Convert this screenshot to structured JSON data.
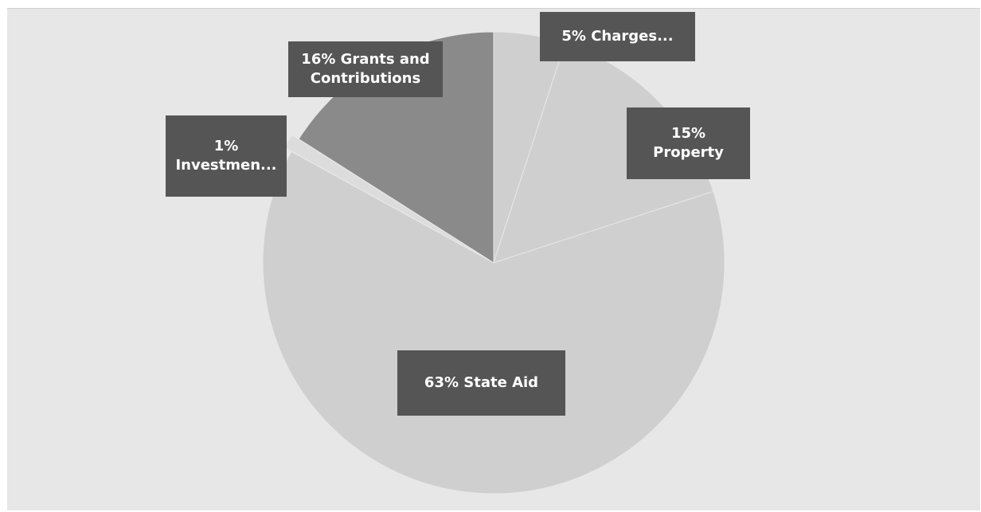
{
  "chart_data": {
    "type": "pie",
    "title": "",
    "slices": [
      {
        "label": "Charges...",
        "value": 5,
        "data_label": "5% Charges...",
        "color": "#cfcfcf"
      },
      {
        "label": "Property",
        "value": 15,
        "data_label": "15%\nProperty",
        "color": "#cfcfcf"
      },
      {
        "label": "State Aid",
        "value": 63,
        "data_label": "63% State Aid",
        "color": "#cfcfcf"
      },
      {
        "label": "Investmen...",
        "value": 1,
        "data_label": "1%\nInvestmen...",
        "color": "#dcdcdc"
      },
      {
        "label": "Grants and Contributions",
        "value": 16,
        "data_label": "16% Grants and\nContributions",
        "color": "#8a8a8a"
      }
    ],
    "start_angle_deg": 0,
    "direction": "clockwise",
    "legend": "none",
    "label_box_color": "#555555",
    "label_text_color": "#ffffff",
    "background_color": "#e7e7e7"
  }
}
